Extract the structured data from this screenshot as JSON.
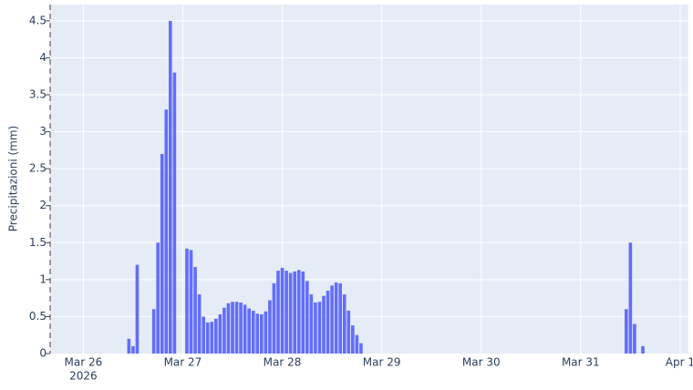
{
  "chart_data": {
    "type": "bar",
    "y_label": "Precipitazioni (mm)",
    "x": [
      "2026-03-26T11:00",
      "2026-03-26T12:00",
      "2026-03-26T13:00",
      "2026-03-26T17:00",
      "2026-03-26T18:00",
      "2026-03-26T19:00",
      "2026-03-26T20:00",
      "2026-03-26T21:00",
      "2026-03-26T22:00",
      "2026-03-27T01:00",
      "2026-03-27T02:00",
      "2026-03-27T03:00",
      "2026-03-27T04:00",
      "2026-03-27T05:00",
      "2026-03-27T06:00",
      "2026-03-27T07:00",
      "2026-03-27T08:00",
      "2026-03-27T09:00",
      "2026-03-27T10:00",
      "2026-03-27T11:00",
      "2026-03-27T12:00",
      "2026-03-27T13:00",
      "2026-03-27T14:00",
      "2026-03-27T15:00",
      "2026-03-27T16:00",
      "2026-03-27T17:00",
      "2026-03-27T18:00",
      "2026-03-27T19:00",
      "2026-03-27T20:00",
      "2026-03-27T21:00",
      "2026-03-27T22:00",
      "2026-03-27T23:00",
      "2026-03-28T00:00",
      "2026-03-28T01:00",
      "2026-03-28T02:00",
      "2026-03-28T03:00",
      "2026-03-28T04:00",
      "2026-03-28T05:00",
      "2026-03-28T06:00",
      "2026-03-28T07:00",
      "2026-03-28T08:00",
      "2026-03-28T09:00",
      "2026-03-28T10:00",
      "2026-03-28T11:00",
      "2026-03-28T12:00",
      "2026-03-28T13:00",
      "2026-03-28T14:00",
      "2026-03-28T15:00",
      "2026-03-28T16:00",
      "2026-03-28T17:00",
      "2026-03-28T18:00",
      "2026-03-28T19:00",
      "2026-03-31T11:00",
      "2026-03-31T12:00",
      "2026-03-31T13:00",
      "2026-03-31T15:00"
    ],
    "values": [
      0.2,
      0.1,
      1.2,
      0.6,
      1.5,
      2.7,
      3.3,
      4.5,
      3.8,
      1.42,
      1.4,
      1.17,
      0.8,
      0.5,
      0.42,
      0.43,
      0.47,
      0.53,
      0.62,
      0.68,
      0.7,
      0.7,
      0.69,
      0.66,
      0.61,
      0.58,
      0.54,
      0.53,
      0.57,
      0.72,
      0.95,
      1.12,
      1.16,
      1.12,
      1.09,
      1.11,
      1.13,
      1.11,
      0.98,
      0.8,
      0.69,
      0.7,
      0.78,
      0.85,
      0.92,
      0.96,
      0.95,
      0.8,
      0.58,
      0.38,
      0.25,
      0.14,
      0.6,
      1.5,
      0.4,
      0.1
    ],
    "color": "#636efa",
    "xlim": [
      "2026-03-25T16:00",
      "2026-04-01T02:00"
    ],
    "xticks": [
      {
        "value": "2026-03-26T00:00",
        "label": "Mar 26",
        "sublabel": "2026"
      },
      {
        "value": "2026-03-27T00:00",
        "label": "Mar 27"
      },
      {
        "value": "2026-03-28T00:00",
        "label": "Mar 28"
      },
      {
        "value": "2026-03-29T00:00",
        "label": "Mar 29"
      },
      {
        "value": "2026-03-30T00:00",
        "label": "Mar 30"
      },
      {
        "value": "2026-03-31T00:00",
        "label": "Mar 31"
      },
      {
        "value": "2026-04-01T00:00",
        "label": "Apr 1"
      }
    ],
    "ylim": [
      0,
      4.72
    ],
    "yticks": [
      0,
      0.5,
      1,
      1.5,
      2,
      2.5,
      3,
      3.5,
      4,
      4.5
    ],
    "grid": true
  }
}
